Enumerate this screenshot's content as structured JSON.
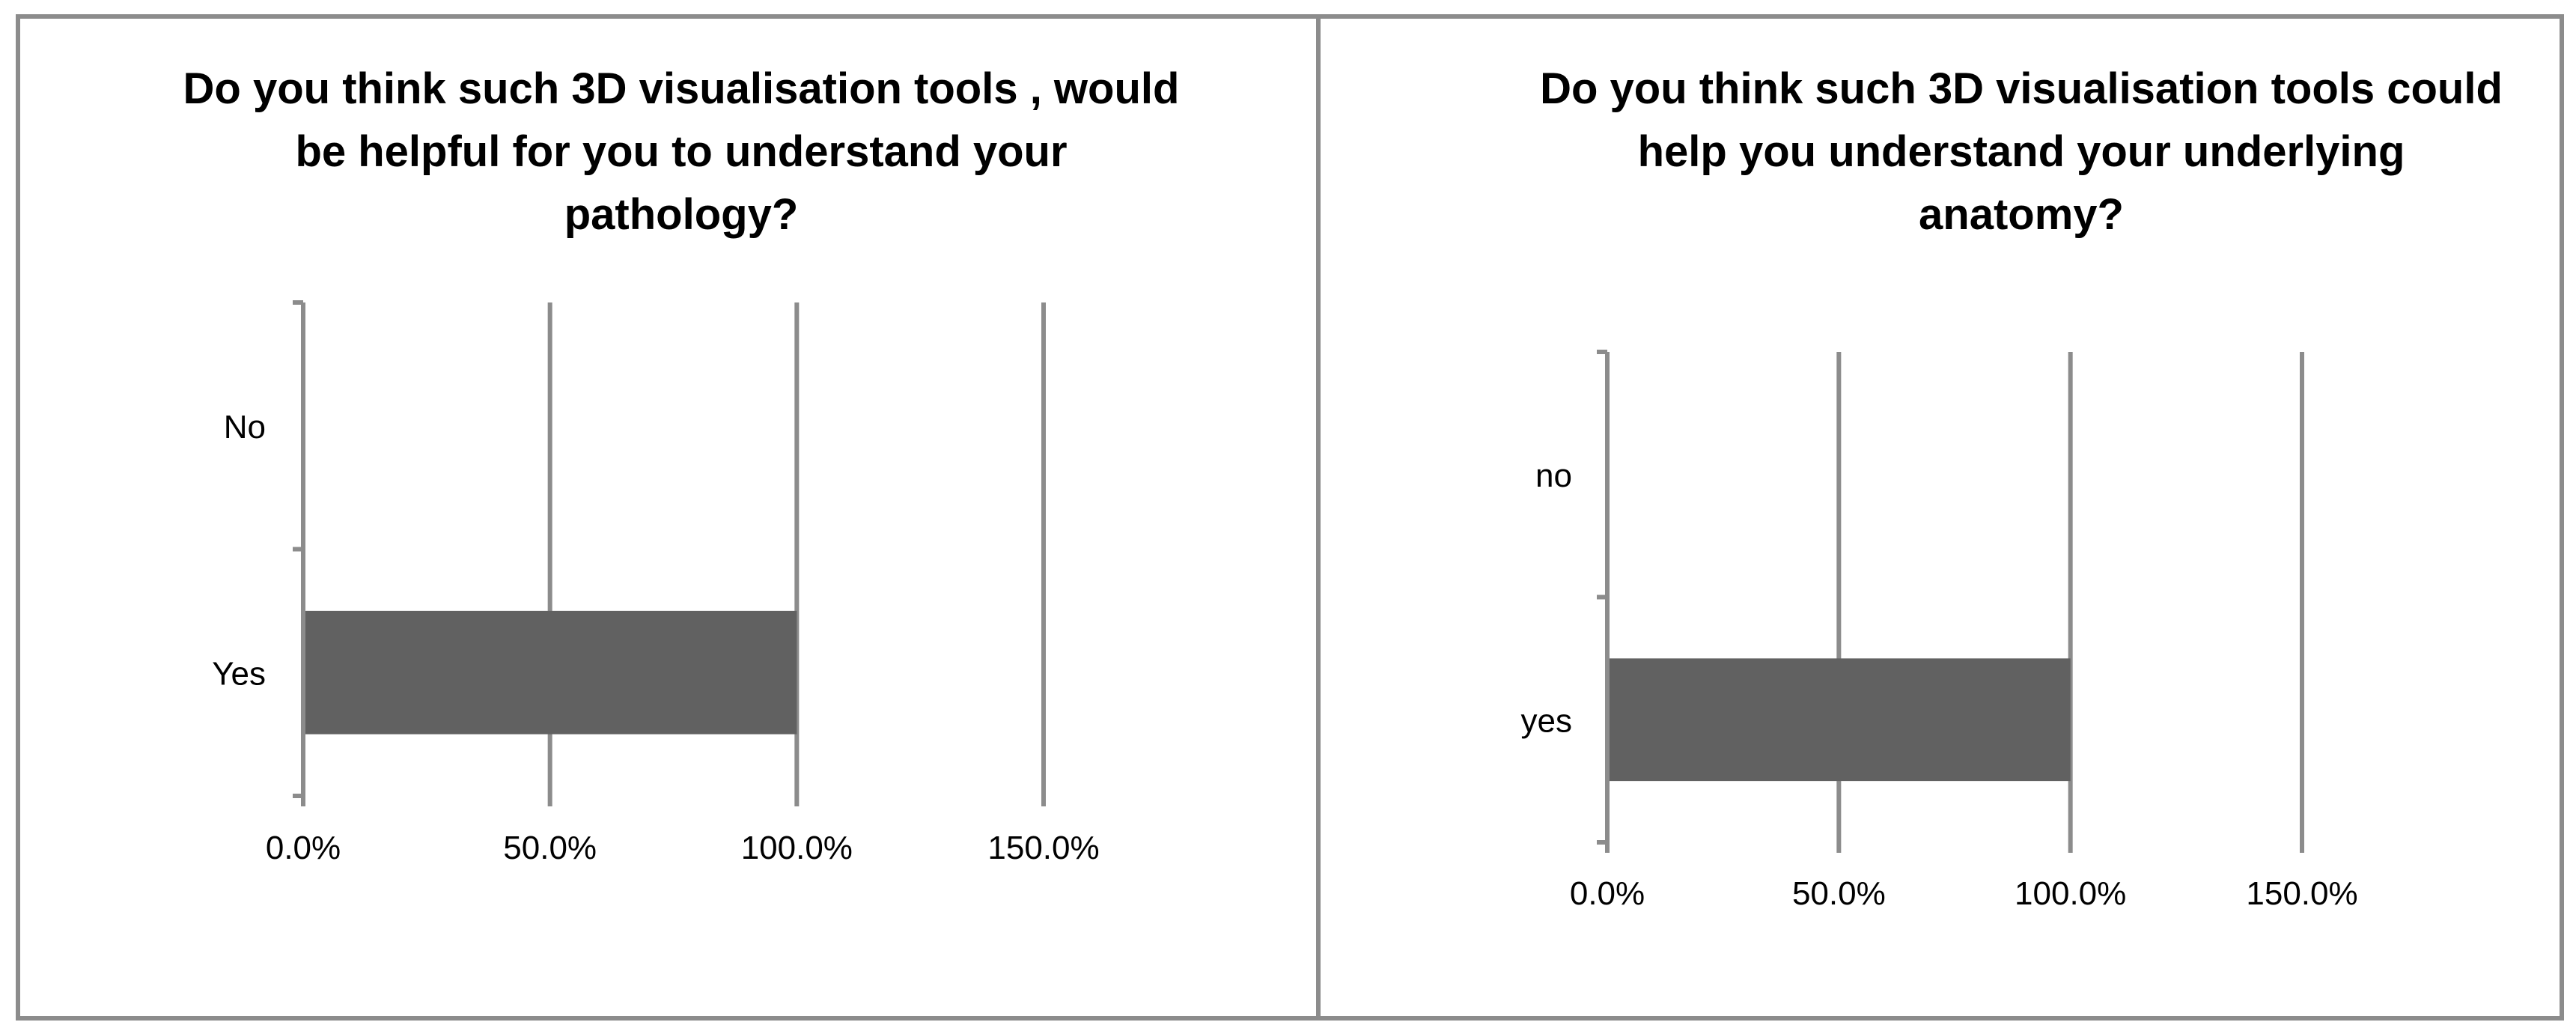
{
  "chart_data": [
    {
      "type": "bar",
      "orientation": "horizontal",
      "title": "Do you think such 3D visualisation tools , would be helpful for you to understand your pathology?",
      "title_lines": [
        "Do you think such 3D visualisation tools , would",
        "be helpful for you to understand your",
        "pathology?"
      ],
      "categories": [
        "No",
        "Yes"
      ],
      "values": [
        0,
        1.0
      ],
      "value_format": "percent",
      "xlim": [
        0,
        1.5
      ],
      "xticks": [
        0,
        0.5,
        1.0,
        1.5
      ],
      "xtick_labels": [
        "0.0%",
        "50.0%",
        "100.0%",
        "150.0%"
      ],
      "grid": true,
      "legend": "none",
      "bar_color": "#616161",
      "grid_color": "#8c8c8c"
    },
    {
      "type": "bar",
      "orientation": "horizontal",
      "title": "Do you think such 3D visualisation tools could help you understand your underlying anatomy?",
      "title_lines": [
        "Do you think such 3D visualisation tools could",
        "help you understand your underlying",
        "anatomy?"
      ],
      "categories": [
        "no",
        "yes"
      ],
      "values": [
        0,
        1.0
      ],
      "value_format": "percent",
      "xlim": [
        0,
        1.5
      ],
      "xticks": [
        0,
        0.5,
        1.0,
        1.5
      ],
      "xtick_labels": [
        "0.0%",
        "50.0%",
        "100.0%",
        "150.0%"
      ],
      "grid": true,
      "legend": "none",
      "bar_color": "#616161",
      "grid_color": "#8c8c8c"
    }
  ]
}
